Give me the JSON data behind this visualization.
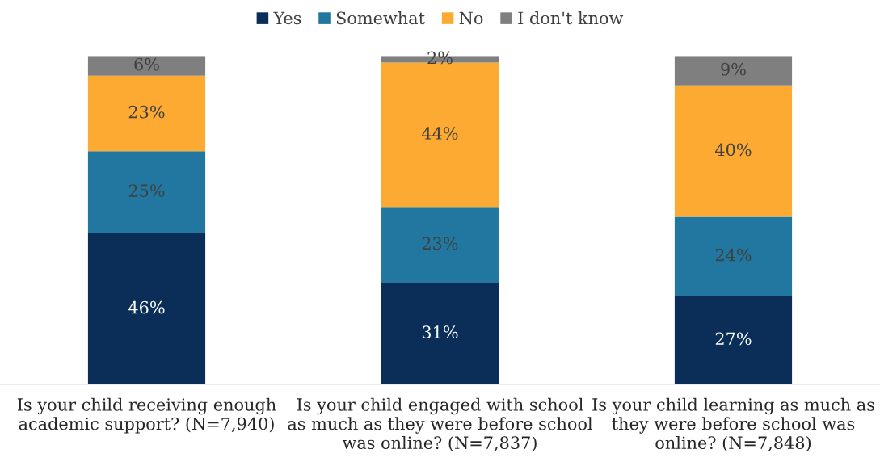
{
  "chart_data": {
    "type": "bar",
    "stacked": true,
    "legend": "top",
    "categories": [
      "Is your child receiving enough\nacademic support? (N=7,940)",
      "Is your child engaged with school\nas much as they were before school\nwas online? (N=7,837)",
      "Is your child learning as much as\nthey were before school was\nonline? (N=7,848)"
    ],
    "series": [
      {
        "name": "Yes",
        "color": "#0b2e58",
        "values": [
          46,
          31,
          27
        ],
        "value_labels": [
          "46%",
          "31%",
          "27%"
        ]
      },
      {
        "name": "Somewhat",
        "color": "#21779f",
        "values": [
          25,
          23,
          24
        ],
        "value_labels": [
          "25%",
          "23%",
          "24%"
        ]
      },
      {
        "name": "No",
        "color": "#fdaa33",
        "values": [
          23,
          44,
          40
        ],
        "value_labels": [
          "23%",
          "44%",
          "40%"
        ]
      },
      {
        "name": "I don't know",
        "color": "#7f7f7f",
        "values": [
          6,
          2,
          9
        ],
        "value_labels": [
          "6%",
          "2%",
          "9%"
        ]
      }
    ]
  }
}
